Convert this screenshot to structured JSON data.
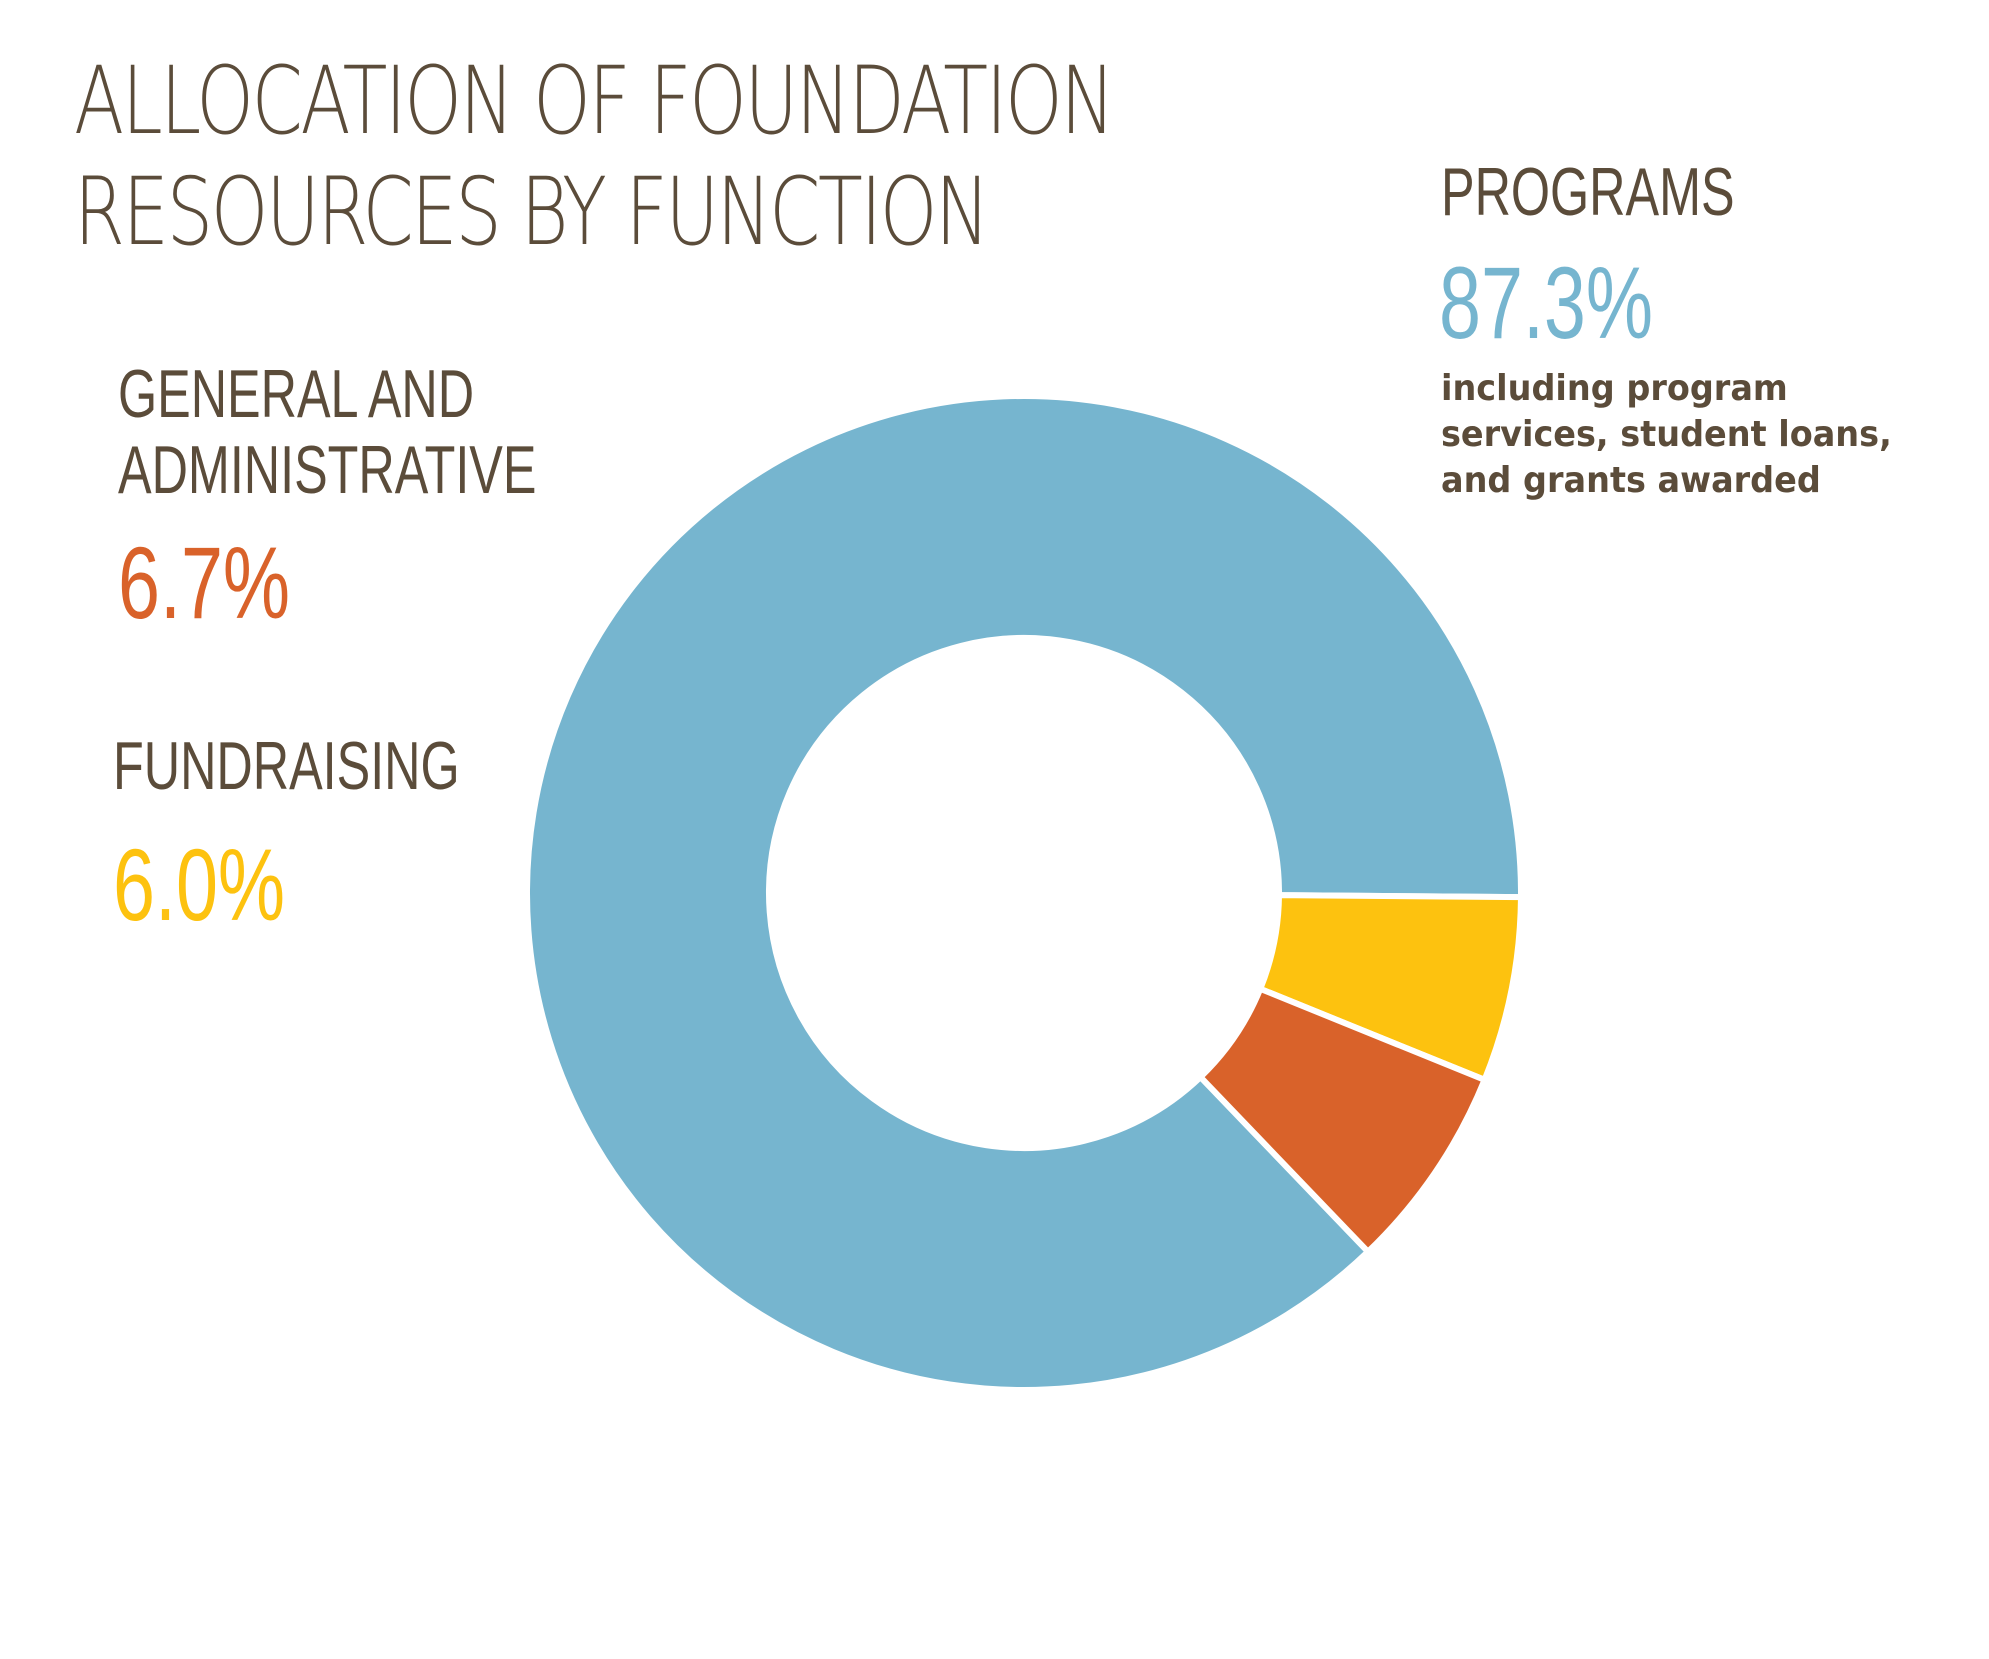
{
  "title": {
    "line1": "ALLOCATION OF FOUNDATION",
    "line2": "RESOURCES BY FUNCTION"
  },
  "chart_data": {
    "type": "pie",
    "variant": "donut",
    "unit": "%",
    "title": "ALLOCATION OF FOUNDATION RESOURCES BY FUNCTION",
    "slices": [
      {
        "name": "PROGRAMS",
        "value": 87.3,
        "display": "87.3%",
        "color": "#76b5cf",
        "note": [
          "including program",
          "services, student loans,",
          "and grants awarded"
        ]
      },
      {
        "name": "GENERAL AND ADMINISTRATIVE",
        "name_lines": [
          "GENERAL AND",
          "ADMINISTRATIVE"
        ],
        "value": 6.7,
        "display": "6.7%",
        "color": "#d9622a"
      },
      {
        "name": "FUNDRAISING",
        "value": 6.0,
        "display": "6.0%",
        "color": "#fdc20f"
      }
    ]
  },
  "colors": {
    "text": "#5b4c3a",
    "programs": "#76b5cf",
    "general_admin": "#d9622a",
    "fundraising": "#fdc20f",
    "separator": "#ffffff"
  }
}
